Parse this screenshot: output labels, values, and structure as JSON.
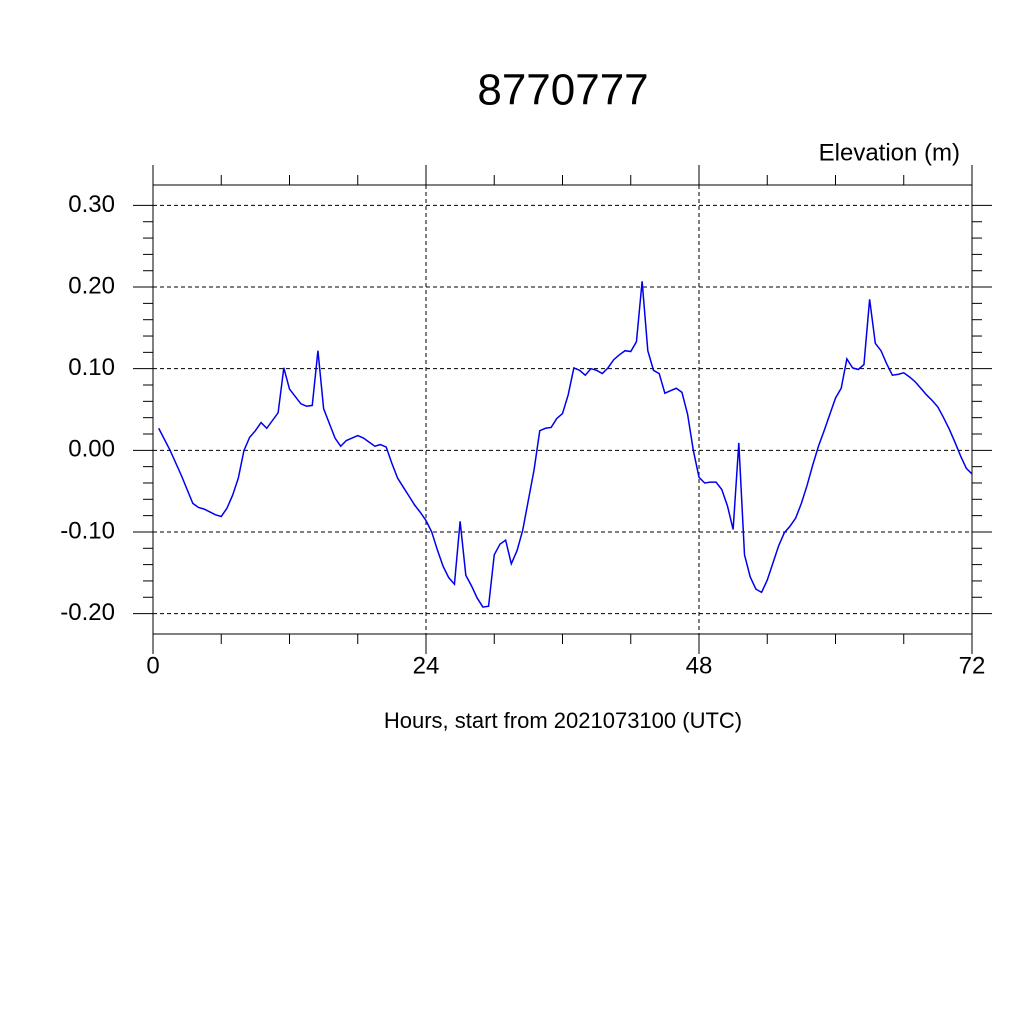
{
  "chart_data": {
    "type": "line",
    "title": "8770777",
    "subtitle": "Elevation (m)",
    "x_label": "Hours, start from 2021073100 (UTC)",
    "xlim": [
      0,
      72
    ],
    "xticks": [
      0,
      24,
      48,
      72
    ],
    "ylim": [
      -0.225,
      0.325
    ],
    "yticks": [
      {
        "value": -0.2,
        "label": "-0.20"
      },
      {
        "value": -0.1,
        "label": "-0.10"
      },
      {
        "value": 0,
        "label": "0.00"
      },
      {
        "value": 0.1,
        "label": "0.10"
      },
      {
        "value": 0.2,
        "label": "0.20"
      },
      {
        "value": 0.3,
        "label": "0.30"
      }
    ],
    "grid": true,
    "x": [
      0.5,
      1.5,
      2.5,
      3.5,
      4,
      4.5,
      5.5,
      6,
      6.5,
      7,
      7.5,
      8,
      8.5,
      9,
      9.5,
      10,
      11,
      11.5,
      12,
      12.5,
      13,
      13.5,
      14,
      14.5,
      15,
      15.5,
      16,
      16.5,
      17,
      17.5,
      18,
      18.5,
      19,
      19.5,
      20,
      20.5,
      21,
      21.5,
      22,
      22.5,
      23,
      23.5,
      24,
      24.5,
      25,
      25.5,
      26,
      26.5,
      27,
      27.5,
      28,
      28.5,
      29,
      29.5,
      30,
      30.5,
      31,
      31.5,
      32,
      32.5,
      33,
      33.5,
      34,
      34.5,
      35,
      35.5,
      36,
      36.5,
      37,
      37.5,
      38,
      38.5,
      39,
      39.5,
      40,
      40.5,
      41,
      41.5,
      42,
      42.5,
      43,
      43.5,
      44,
      44.5,
      45,
      45.5,
      46,
      46.5,
      47,
      47.5,
      48,
      48.5,
      49,
      49.5,
      50,
      50.5,
      51,
      51.5,
      52,
      52.5,
      53,
      53.5,
      54,
      54.5,
      55,
      55.5,
      56,
      56.5,
      57,
      57.5,
      58,
      58.5,
      59,
      59.5,
      60,
      60.5,
      61,
      61.5,
      62,
      62.5,
      63,
      63.5,
      64,
      64.5,
      65,
      65.5,
      66,
      66.5,
      67,
      67.5,
      68,
      68.5,
      69,
      69.5,
      70,
      70.5,
      71,
      71.5,
      72
    ],
    "series": [
      {
        "name": "Elevation",
        "color": "#0000ee",
        "values": [
          0.027,
          0,
          -0.031,
          -0.065,
          -0.07,
          -0.072,
          -0.079,
          -0.081,
          -0.071,
          -0.055,
          -0.034,
          0,
          0.016,
          0.024,
          0.034,
          0.027,
          0.046,
          0.101,
          0.075,
          0.066,
          0.057,
          0.054,
          0.055,
          0.122,
          0.051,
          0.033,
          0.015,
          0.005,
          0.012,
          0.015,
          0.018,
          0.015,
          0.01,
          0.005,
          0.007,
          0.004,
          -0.016,
          -0.034,
          -0.045,
          -0.056,
          -0.067,
          -0.076,
          -0.086,
          -0.1,
          -0.122,
          -0.142,
          -0.156,
          -0.164,
          -0.087,
          -0.153,
          -0.166,
          -0.181,
          -0.192,
          -0.191,
          -0.128,
          -0.115,
          -0.11,
          -0.139,
          -0.123,
          -0.098,
          -0.061,
          -0.024,
          0.024,
          0.027,
          0.028,
          0.039,
          0.045,
          0.068,
          0.101,
          0.098,
          0.092,
          0.1,
          0.098,
          0.094,
          0.101,
          0.111,
          0.117,
          0.122,
          0.121,
          0.133,
          0.207,
          0.122,
          0.098,
          0.094,
          0.07,
          0.073,
          0.076,
          0.071,
          0.044,
          0,
          -0.033,
          -0.04,
          -0.039,
          -0.039,
          -0.048,
          -0.068,
          -0.097,
          0.009,
          -0.128,
          -0.155,
          -0.17,
          -0.174,
          -0.159,
          -0.138,
          -0.117,
          -0.101,
          -0.093,
          -0.083,
          -0.065,
          -0.043,
          -0.018,
          0.005,
          0.024,
          0.044,
          0.064,
          0.076,
          0.112,
          0.101,
          0.099,
          0.105,
          0.185,
          0.131,
          0.122,
          0.106,
          0.092,
          0.093,
          0.095,
          0.09,
          0.084,
          0.076,
          0.068,
          0.061,
          0.053,
          0.04,
          0.026,
          0.01,
          -0.007,
          -0.022,
          -0.029
        ]
      }
    ]
  }
}
